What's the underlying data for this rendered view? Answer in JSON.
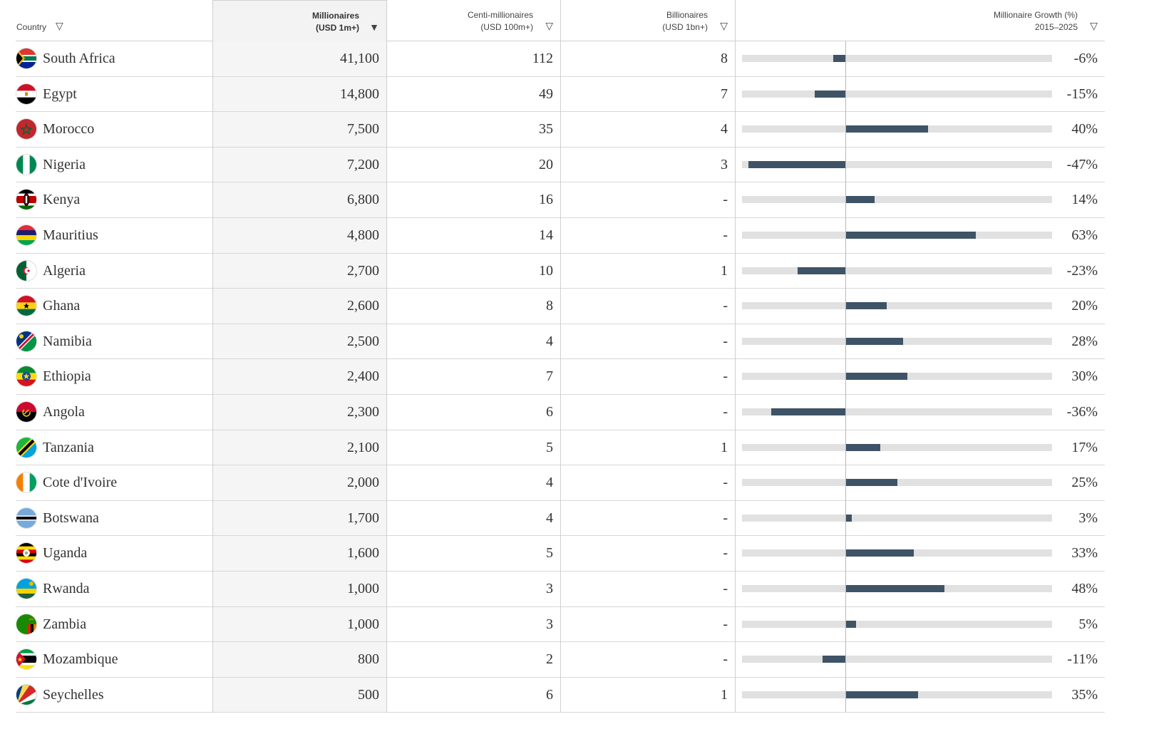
{
  "header": {
    "country": "Country",
    "millionaires_l1": "Millionaires",
    "millionaires_l2": "(USD 1m+)",
    "centi_l1": "Centi-millionaires",
    "centi_l2": "(USD 100m+)",
    "billion_l1": "Billionaires",
    "billion_l2": "(USD 1bn+)",
    "growth_l1": "Millionaire Growth (%)",
    "growth_l2": "2015–2025",
    "sort_desc_icon": "▼",
    "sort_icon": "▽"
  },
  "colors": {
    "bar": "#3e5366",
    "track": "#e1e1e1",
    "sorted_column": "#f5f5f5"
  },
  "chart_data": {
    "type": "table",
    "columns": [
      "Country",
      "Millionaires (USD 1m+)",
      "Centi-millionaires (USD 100m+)",
      "Billionaires (USD 1bn+)",
      "Millionaire Growth (%) 2015–2025"
    ],
    "sorted_by": "Millionaires (USD 1m+)",
    "growth_axis_range": [
      -50,
      100
    ],
    "rows": [
      {
        "country": "South Africa",
        "flag": "south-africa",
        "millionaires": "41,100",
        "centi": "112",
        "billionaires": "8",
        "growth": -6,
        "growth_label": "-6%"
      },
      {
        "country": "Egypt",
        "flag": "egypt",
        "millionaires": "14,800",
        "centi": "49",
        "billionaires": "7",
        "growth": -15,
        "growth_label": "-15%"
      },
      {
        "country": "Morocco",
        "flag": "morocco",
        "millionaires": "7,500",
        "centi": "35",
        "billionaires": "4",
        "growth": 40,
        "growth_label": "40%"
      },
      {
        "country": "Nigeria",
        "flag": "nigeria",
        "millionaires": "7,200",
        "centi": "20",
        "billionaires": "3",
        "growth": -47,
        "growth_label": "-47%"
      },
      {
        "country": "Kenya",
        "flag": "kenya",
        "millionaires": "6,800",
        "centi": "16",
        "billionaires": "-",
        "growth": 14,
        "growth_label": "14%"
      },
      {
        "country": "Mauritius",
        "flag": "mauritius",
        "millionaires": "4,800",
        "centi": "14",
        "billionaires": "-",
        "growth": 63,
        "growth_label": "63%"
      },
      {
        "country": "Algeria",
        "flag": "algeria",
        "millionaires": "2,700",
        "centi": "10",
        "billionaires": "1",
        "growth": -23,
        "growth_label": "-23%"
      },
      {
        "country": "Ghana",
        "flag": "ghana",
        "millionaires": "2,600",
        "centi": "8",
        "billionaires": "-",
        "growth": 20,
        "growth_label": "20%"
      },
      {
        "country": "Namibia",
        "flag": "namibia",
        "millionaires": "2,500",
        "centi": "4",
        "billionaires": "-",
        "growth": 28,
        "growth_label": "28%"
      },
      {
        "country": "Ethiopia",
        "flag": "ethiopia",
        "millionaires": "2,400",
        "centi": "7",
        "billionaires": "-",
        "growth": 30,
        "growth_label": "30%"
      },
      {
        "country": "Angola",
        "flag": "angola",
        "millionaires": "2,300",
        "centi": "6",
        "billionaires": "-",
        "growth": -36,
        "growth_label": "-36%"
      },
      {
        "country": "Tanzania",
        "flag": "tanzania",
        "millionaires": "2,100",
        "centi": "5",
        "billionaires": "1",
        "growth": 17,
        "growth_label": "17%"
      },
      {
        "country": "Cote d'Ivoire",
        "flag": "cote-divoire",
        "millionaires": "2,000",
        "centi": "4",
        "billionaires": "-",
        "growth": 25,
        "growth_label": "25%"
      },
      {
        "country": "Botswana",
        "flag": "botswana",
        "millionaires": "1,700",
        "centi": "4",
        "billionaires": "-",
        "growth": 3,
        "growth_label": "3%"
      },
      {
        "country": "Uganda",
        "flag": "uganda",
        "millionaires": "1,600",
        "centi": "5",
        "billionaires": "-",
        "growth": 33,
        "growth_label": "33%"
      },
      {
        "country": "Rwanda",
        "flag": "rwanda",
        "millionaires": "1,000",
        "centi": "3",
        "billionaires": "-",
        "growth": 48,
        "growth_label": "48%"
      },
      {
        "country": "Zambia",
        "flag": "zambia",
        "millionaires": "1,000",
        "centi": "3",
        "billionaires": "-",
        "growth": 5,
        "growth_label": "5%"
      },
      {
        "country": "Mozambique",
        "flag": "mozambique",
        "millionaires": "800",
        "centi": "2",
        "billionaires": "-",
        "growth": -11,
        "growth_label": "-11%"
      },
      {
        "country": "Seychelles",
        "flag": "seychelles",
        "millionaires": "500",
        "centi": "6",
        "billionaires": "1",
        "growth": 35,
        "growth_label": "35%"
      }
    ]
  }
}
